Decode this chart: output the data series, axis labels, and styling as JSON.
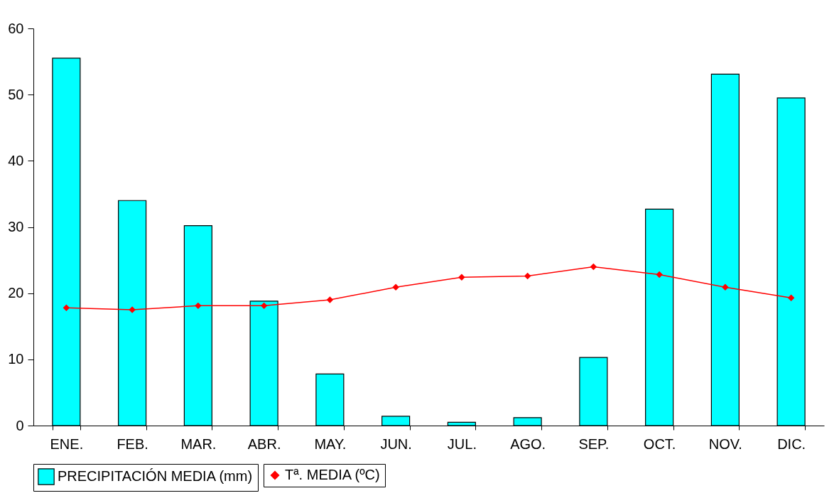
{
  "chart_data": {
    "type": "bar",
    "categories": [
      "ENE.",
      "FEB.",
      "MAR.",
      "ABR.",
      "MAY.",
      "JUN.",
      "JUL.",
      "AGO.",
      "SEP.",
      "OCT.",
      "NOV.",
      "DIC."
    ],
    "series": [
      {
        "name": "PRECIPITACIÓN MEDIA (mm)",
        "color": "#00ffff",
        "values": [
          55.5,
          34.0,
          30.2,
          18.8,
          7.8,
          1.4,
          0.5,
          1.2,
          10.3,
          32.7,
          53.1,
          49.5
        ]
      },
      {
        "name": "Tª. MEDIA (ºC)",
        "type": "line",
        "color": "#ff0000",
        "marker": "diamond",
        "values": [
          17.8,
          17.5,
          18.1,
          18.1,
          19.0,
          20.9,
          22.4,
          22.6,
          24.0,
          22.8,
          20.9,
          19.3
        ]
      }
    ],
    "ylim": [
      0,
      60
    ],
    "yticks": [
      0,
      10,
      20,
      30,
      40,
      50,
      60
    ],
    "grid": false,
    "legend": "bottom"
  }
}
